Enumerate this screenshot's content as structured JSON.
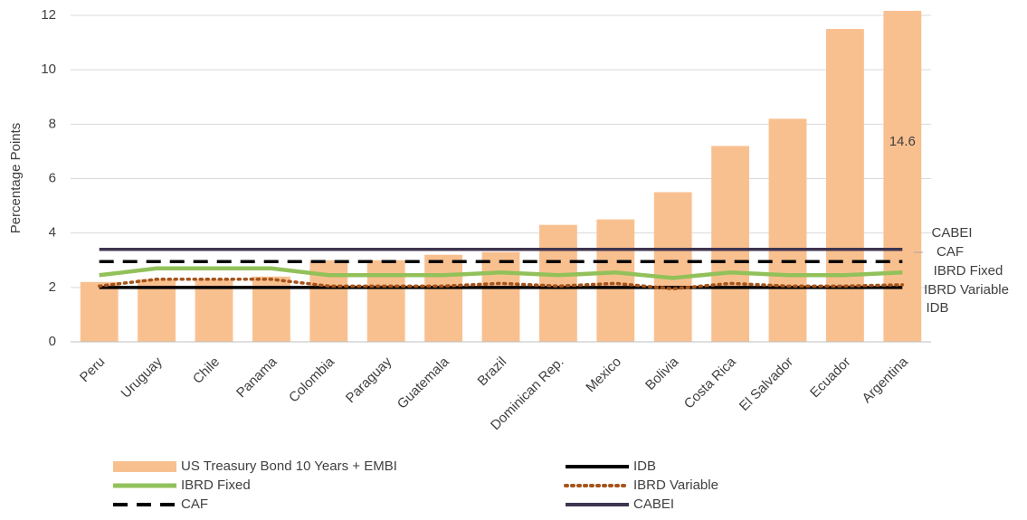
{
  "chart_data": {
    "type": "bar",
    "y_label": "Percentage Points",
    "categories": [
      "Peru",
      "Uruguay",
      "Chile",
      "Panama",
      "Colombia",
      "Paraguay",
      "Guatemala",
      "Brazil",
      "Dominican Rep.",
      "Mexico",
      "Bolivia",
      "Costa Rica",
      "El Salvador",
      "Ecuador",
      "Argentina"
    ],
    "series": [
      {
        "name": "US Treasury Bond 10 Years + EMBI",
        "type": "bar",
        "color": "#f9c08f",
        "values": [
          2.2,
          2.3,
          2.3,
          2.4,
          3.0,
          3.0,
          3.2,
          3.3,
          4.3,
          4.5,
          5.5,
          7.2,
          8.2,
          11.5,
          14.6
        ],
        "value_labels": [
          null,
          null,
          null,
          null,
          null,
          null,
          null,
          null,
          null,
          null,
          null,
          null,
          null,
          null,
          "14.6"
        ]
      },
      {
        "name": "IDB",
        "type": "line",
        "color": "#000000",
        "dash": "solid",
        "values": [
          2.0,
          2.0,
          2.0,
          2.0,
          2.0,
          2.0,
          2.0,
          2.0,
          2.0,
          2.0,
          2.0,
          2.0,
          2.0,
          2.0,
          2.0
        ]
      },
      {
        "name": "IBRD Fixed",
        "type": "line",
        "color": "#92c15a",
        "dash": "solid",
        "values": [
          2.45,
          2.7,
          2.7,
          2.7,
          2.45,
          2.45,
          2.45,
          2.55,
          2.45,
          2.55,
          2.35,
          2.55,
          2.45,
          2.45,
          2.55
        ]
      },
      {
        "name": "IBRD Variable",
        "type": "line",
        "color": "#a5541c",
        "dash": "dotted",
        "values": [
          2.05,
          2.3,
          2.3,
          2.3,
          2.05,
          2.05,
          2.05,
          2.15,
          2.05,
          2.15,
          1.95,
          2.15,
          2.05,
          2.05,
          2.1
        ]
      },
      {
        "name": "CAF",
        "type": "line",
        "color": "#000000",
        "dash": "dashed",
        "values": [
          2.95,
          2.95,
          2.95,
          2.95,
          2.95,
          2.95,
          2.95,
          2.95,
          2.95,
          2.95,
          2.95,
          2.95,
          2.95,
          2.95,
          2.95
        ]
      },
      {
        "name": "CABEI",
        "type": "line",
        "color": "#3f3550",
        "dash": "solid",
        "values": [
          3.4,
          3.4,
          3.4,
          3.4,
          3.4,
          3.4,
          3.4,
          3.4,
          3.4,
          3.4,
          3.4,
          3.4,
          3.4,
          3.4,
          3.4
        ]
      }
    ],
    "ylim": [
      0,
      12
    ],
    "yticks": [
      0,
      2,
      4,
      6,
      8,
      10,
      12
    ],
    "grid": true,
    "legend": "bottom"
  }
}
